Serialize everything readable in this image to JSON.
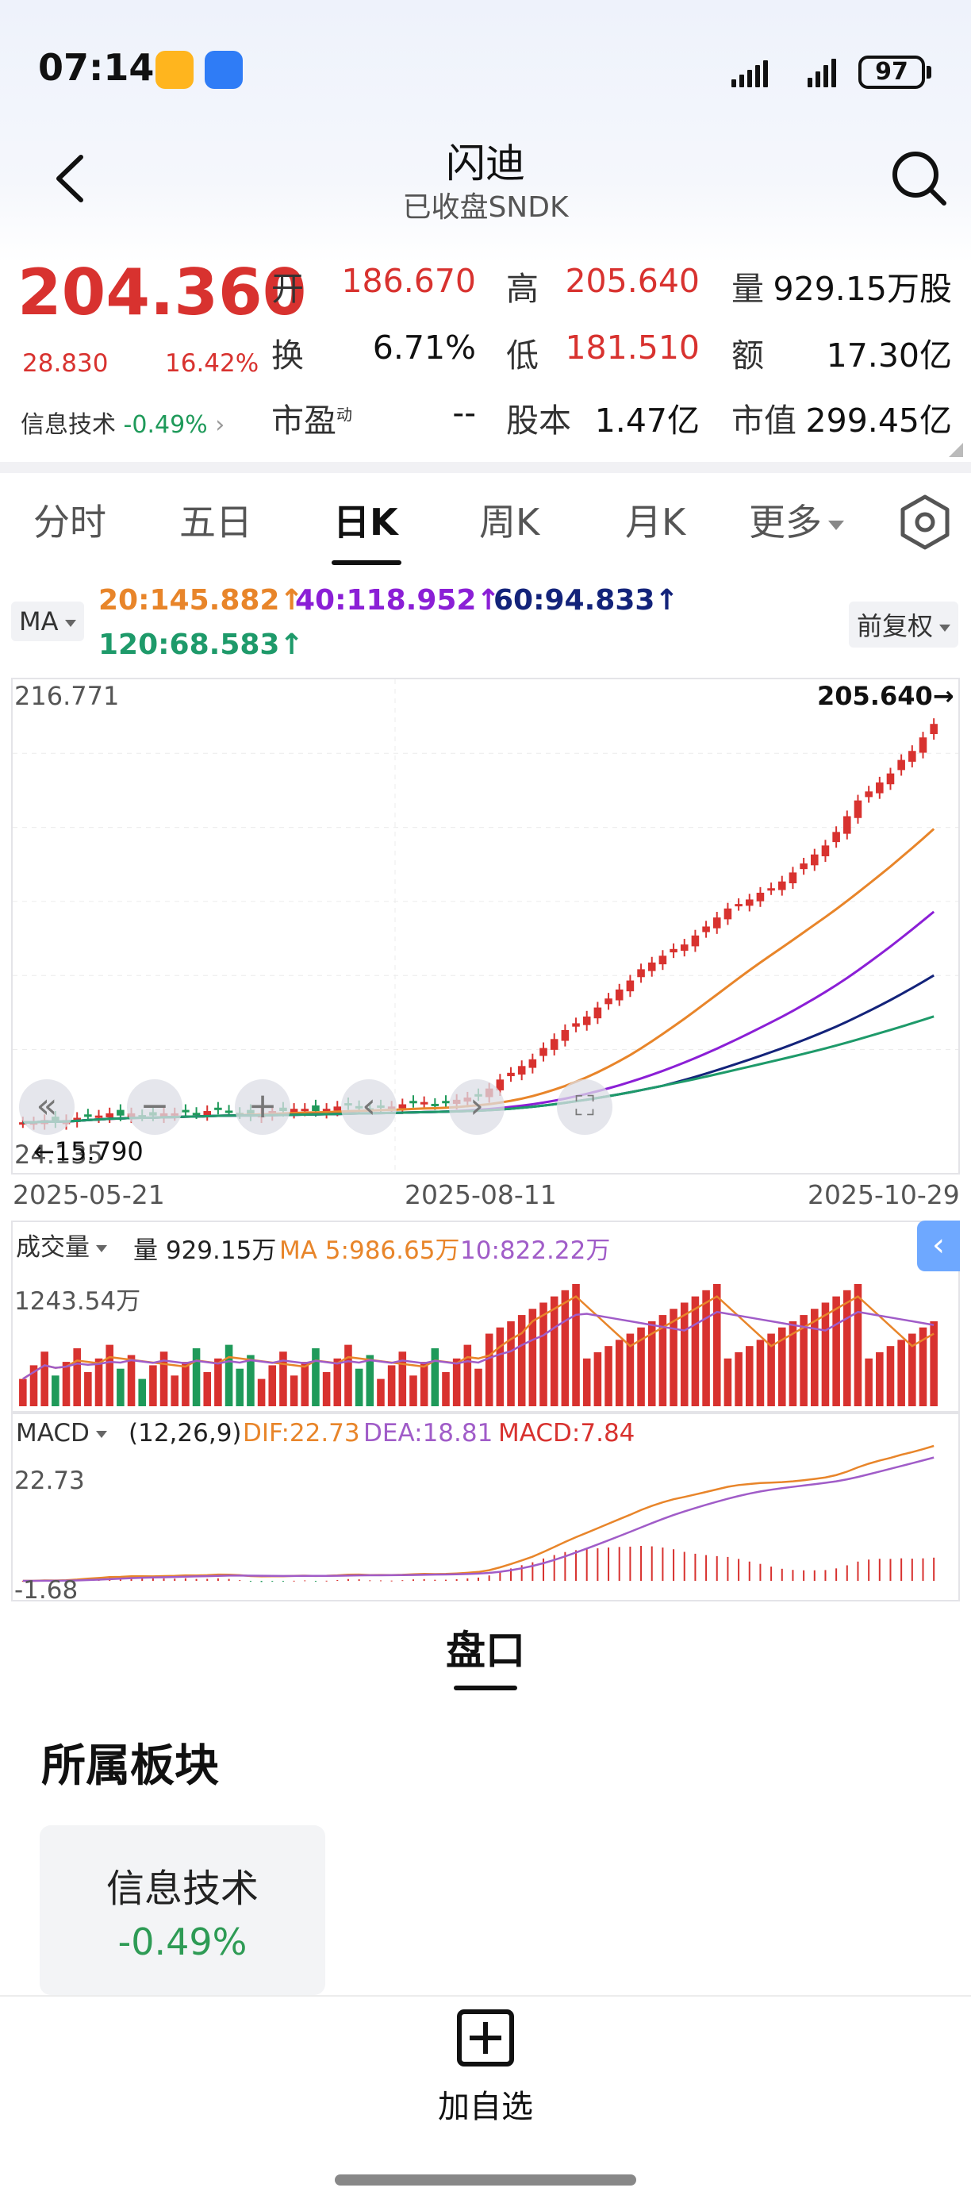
{
  "status_bar": {
    "time": "07:14",
    "battery": "97"
  },
  "header": {
    "title": "闪迪",
    "subtitle": "已收盘SNDK"
  },
  "quote": {
    "price": "204.360",
    "change": "28.830",
    "change_pct": "16.42%",
    "sector_name": "信息技术",
    "sector_change": "-0.49%",
    "fields": {
      "open_label": "开",
      "open": "186.670",
      "high_label": "高",
      "high": "205.640",
      "volume_label": "量",
      "volume": "929.15万股",
      "turnover_label": "换",
      "turnover": "6.71%",
      "low_label": "低",
      "low": "181.510",
      "amount_label": "额",
      "amount": "17.30亿",
      "pe_label": "市盈",
      "pe_sup": "动",
      "pe": "--",
      "shares_label": "股本",
      "shares": "1.47亿",
      "mcap_label": "市值",
      "mcap": "299.45亿"
    }
  },
  "tabs": [
    "分时",
    "五日",
    "日K",
    "周K",
    "月K",
    "更多"
  ],
  "active_tab": "日K",
  "ma_bar": {
    "selector": "MA",
    "ma20": "20:145.882↑",
    "ma40": "40:118.952↑",
    "ma60": "60:94.833↑",
    "ma120": "120:68.583↑",
    "adjust": "前复权"
  },
  "colors": {
    "up": "#d8322f",
    "down": "#1f9a5a",
    "ma20": "#e8852a",
    "ma40": "#8b1fd6",
    "ma60": "#13237a",
    "ma120": "#1e9a6a",
    "ma5": "#e8852a",
    "ma10": "#a05cc8"
  },
  "price_chart": {
    "top_label": "216.771",
    "bottom_label": "24.135",
    "high_marker": "205.640→",
    "low_marker": "←15.790",
    "dates": [
      "2025-05-21",
      "2025-08-11",
      "2025-10-29"
    ]
  },
  "volume_panel": {
    "selector": "成交量",
    "vol": "量 929.15万",
    "ma5": "MA 5:986.65万",
    "ma10": "10:822.22万",
    "max_label": "1243.54万"
  },
  "macd_panel": {
    "selector": "MACD",
    "params": "(12,26,9)",
    "dif": "DIF:22.73",
    "dea": "DEA:18.81",
    "macd": "MACD:7.84",
    "top_label": "22.73",
    "bottom_label": "-1.68"
  },
  "chart_data": {
    "type": "candlestick",
    "title": "",
    "y_range": [
      15.79,
      216.771
    ],
    "x_start": "2025-05-21",
    "x_end": "2025-10-29",
    "last_close": 204.36,
    "last_high": 205.64,
    "last_low": 181.51,
    "last_open": 186.67,
    "close_trend": [
      27,
      27,
      28,
      27,
      28,
      29,
      30,
      30,
      31,
      30,
      31,
      30,
      30,
      31,
      31,
      32,
      31,
      32,
      33,
      32,
      31,
      30,
      31,
      32,
      32,
      33,
      33,
      32,
      33,
      34,
      35,
      34,
      33,
      34,
      34,
      35,
      36,
      36,
      35,
      36,
      37,
      38,
      39,
      42,
      46,
      49,
      52,
      55,
      60,
      64,
      68,
      71,
      74,
      78,
      82,
      86,
      90,
      95,
      98,
      101,
      104,
      106,
      110,
      114,
      118,
      122,
      124,
      126,
      129,
      131,
      134,
      138,
      142,
      146,
      150,
      156,
      163,
      170,
      174,
      178,
      182,
      188,
      192,
      198,
      204
    ],
    "ma20_end": 145.882,
    "ma40_end": 118.952,
    "ma60_end": 94.833,
    "ma120_end": 68.583,
    "volume_max": "1243.54万"
  },
  "section": {
    "tab": "盘口",
    "heading": "所属板块"
  },
  "sector_card": {
    "name": "信息技术",
    "change": "-0.49%"
  },
  "bottom": {
    "add_label": "加自选"
  }
}
